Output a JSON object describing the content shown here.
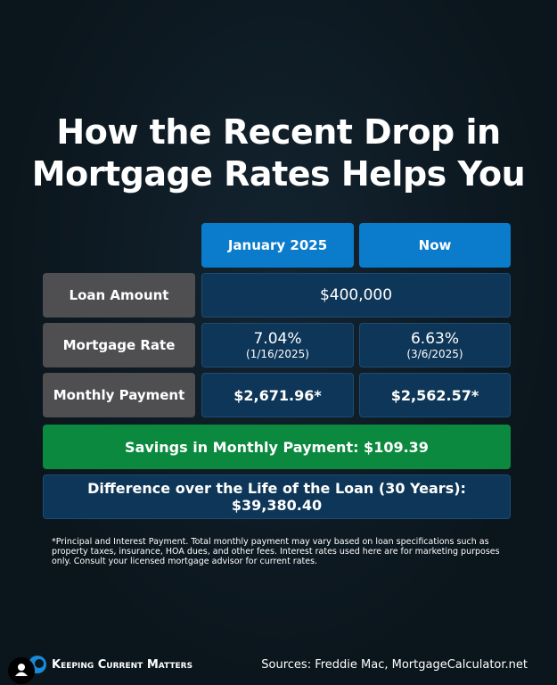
{
  "title": {
    "lines": [
      "How the Recent Drop in",
      "Mortgage Rates Helps You"
    ]
  },
  "table": {
    "columns": [
      "January 2025",
      "Now"
    ],
    "rows": [
      {
        "label": "Loan Amount",
        "value": "$400,000"
      },
      {
        "label": "Mortgage Rate",
        "cells": [
          {
            "value": "7.04%",
            "date": "(1/16/2025)"
          },
          {
            "value": "6.63%",
            "date": "(3/6/2025)"
          }
        ]
      },
      {
        "label": "Monthly Payment",
        "cells": [
          {
            "value": "$2,671.96*"
          },
          {
            "value": "$2,562.57*"
          }
        ]
      }
    ]
  },
  "savings": "Savings in Monthly Payment: $109.39",
  "difference": "Difference over the Life of the Loan (30 Years): $39,380.40",
  "footnote": "*Principal and Interest Payment. Total monthly payment may vary based on loan specifications such as property taxes, insurance, HOA dues, and other fees. Interest rates used here are for marketing purposes only. Consult your licensed mortgage advisor for current rates.",
  "brand": "Keeping Current Matters",
  "sources": "Sources: Freddie Mac, MortgageCalculator.net"
}
